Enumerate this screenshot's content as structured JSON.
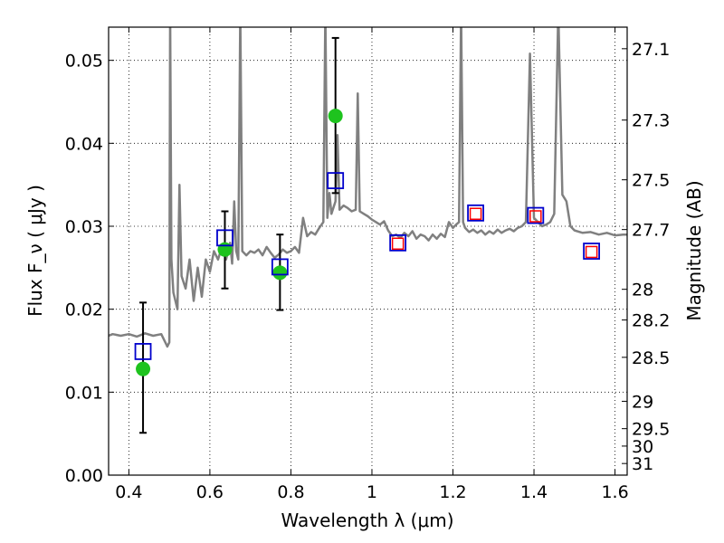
{
  "chart_data": {
    "type": "scatter",
    "xlabel": "Wavelength  λ (μm)",
    "ylabel": "Flux  F_ν  ( μJy )",
    "ylabel_right": "Magnitude (AB)",
    "xlim": [
      0.35,
      1.63
    ],
    "ylim": [
      0.0,
      0.054
    ],
    "grid": true,
    "x_ticks": [
      {
        "value": 0.4,
        "label": "0.4"
      },
      {
        "value": 0.6,
        "label": "0.6"
      },
      {
        "value": 0.8,
        "label": "0.8"
      },
      {
        "value": 1.0,
        "label": "1"
      },
      {
        "value": 1.2,
        "label": "1.2"
      },
      {
        "value": 1.4,
        "label": "1.4"
      },
      {
        "value": 1.6,
        "label": "1.6"
      }
    ],
    "y_ticks": [
      {
        "value": 0.0,
        "label": "0.00"
      },
      {
        "value": 0.01,
        "label": "0.01"
      },
      {
        "value": 0.02,
        "label": "0.02"
      },
      {
        "value": 0.03,
        "label": "0.03"
      },
      {
        "value": 0.04,
        "label": "0.04"
      },
      {
        "value": 0.05,
        "label": "0.05"
      }
    ],
    "magnitude_ticks": [
      {
        "label": "27.1",
        "flux": 0.0514
      },
      {
        "label": "27.3",
        "flux": 0.0428
      },
      {
        "label": "27.5",
        "flux": 0.0356
      },
      {
        "label": "27.7",
        "flux": 0.0296
      },
      {
        "label": "28",
        "flux": 0.0224
      },
      {
        "label": "28.2",
        "flux": 0.0187
      },
      {
        "label": "28.5",
        "flux": 0.0142
      },
      {
        "label": "29",
        "flux": 0.0089
      },
      {
        "label": "29.5",
        "flux": 0.0056
      },
      {
        "label": "30",
        "flux": 0.0035
      },
      {
        "label": "31",
        "flux": 0.0014
      }
    ],
    "series": [
      {
        "color": "#808080",
        "marker": "line",
        "points": [
          [
            0.35,
            0.0168
          ],
          [
            0.36,
            0.017
          ],
          [
            0.38,
            0.0168
          ],
          [
            0.4,
            0.017
          ],
          [
            0.42,
            0.0167
          ],
          [
            0.44,
            0.0171
          ],
          [
            0.46,
            0.0168
          ],
          [
            0.48,
            0.017
          ],
          [
            0.495,
            0.0155
          ],
          [
            0.5,
            0.016
          ],
          [
            0.502,
            0.056
          ],
          [
            0.505,
            0.026
          ],
          [
            0.51,
            0.022
          ],
          [
            0.52,
            0.02
          ],
          [
            0.525,
            0.035
          ],
          [
            0.53,
            0.024
          ],
          [
            0.54,
            0.0225
          ],
          [
            0.55,
            0.026
          ],
          [
            0.56,
            0.021
          ],
          [
            0.57,
            0.025
          ],
          [
            0.58,
            0.0215
          ],
          [
            0.59,
            0.026
          ],
          [
            0.6,
            0.0245
          ],
          [
            0.61,
            0.027
          ],
          [
            0.62,
            0.026
          ],
          [
            0.63,
            0.0275
          ],
          [
            0.64,
            0.026
          ],
          [
            0.65,
            0.028
          ],
          [
            0.655,
            0.0255
          ],
          [
            0.66,
            0.033
          ],
          [
            0.665,
            0.027
          ],
          [
            0.67,
            0.026
          ],
          [
            0.675,
            0.056
          ],
          [
            0.68,
            0.027
          ],
          [
            0.69,
            0.0265
          ],
          [
            0.7,
            0.027
          ],
          [
            0.71,
            0.0268
          ],
          [
            0.72,
            0.0272
          ],
          [
            0.73,
            0.0265
          ],
          [
            0.74,
            0.0275
          ],
          [
            0.75,
            0.0268
          ],
          [
            0.76,
            0.0262
          ],
          [
            0.77,
            0.0266
          ],
          [
            0.78,
            0.0272
          ],
          [
            0.79,
            0.0268
          ],
          [
            0.8,
            0.027
          ],
          [
            0.81,
            0.0275
          ],
          [
            0.82,
            0.0268
          ],
          [
            0.83,
            0.031
          ],
          [
            0.84,
            0.0288
          ],
          [
            0.85,
            0.0293
          ],
          [
            0.86,
            0.029
          ],
          [
            0.87,
            0.0298
          ],
          [
            0.88,
            0.0305
          ],
          [
            0.885,
            0.056
          ],
          [
            0.89,
            0.031
          ],
          [
            0.895,
            0.034
          ],
          [
            0.9,
            0.0315
          ],
          [
            0.91,
            0.033
          ],
          [
            0.915,
            0.041
          ],
          [
            0.92,
            0.032
          ],
          [
            0.93,
            0.0325
          ],
          [
            0.94,
            0.0322
          ],
          [
            0.95,
            0.0318
          ],
          [
            0.96,
            0.032
          ],
          [
            0.965,
            0.046
          ],
          [
            0.97,
            0.0318
          ],
          [
            0.98,
            0.0315
          ],
          [
            0.99,
            0.0312
          ],
          [
            1.0,
            0.0308
          ],
          [
            1.01,
            0.0305
          ],
          [
            1.02,
            0.0302
          ],
          [
            1.03,
            0.0306
          ],
          [
            1.04,
            0.0295
          ],
          [
            1.05,
            0.0288
          ],
          [
            1.06,
            0.029
          ],
          [
            1.07,
            0.0286
          ],
          [
            1.08,
            0.0292
          ],
          [
            1.09,
            0.0288
          ],
          [
            1.1,
            0.0294
          ],
          [
            1.11,
            0.0285
          ],
          [
            1.12,
            0.029
          ],
          [
            1.13,
            0.0288
          ],
          [
            1.14,
            0.0283
          ],
          [
            1.15,
            0.029
          ],
          [
            1.16,
            0.0285
          ],
          [
            1.17,
            0.0291
          ],
          [
            1.18,
            0.0287
          ],
          [
            1.19,
            0.0305
          ],
          [
            1.2,
            0.0298
          ],
          [
            1.21,
            0.0303
          ],
          [
            1.215,
            0.0305
          ],
          [
            1.22,
            0.056
          ],
          [
            1.225,
            0.0305
          ],
          [
            1.23,
            0.0298
          ],
          [
            1.24,
            0.0293
          ],
          [
            1.25,
            0.0296
          ],
          [
            1.26,
            0.0292
          ],
          [
            1.27,
            0.0295
          ],
          [
            1.28,
            0.029
          ],
          [
            1.29,
            0.0294
          ],
          [
            1.3,
            0.0291
          ],
          [
            1.31,
            0.0296
          ],
          [
            1.32,
            0.0292
          ],
          [
            1.33,
            0.0295
          ],
          [
            1.34,
            0.0297
          ],
          [
            1.35,
            0.0294
          ],
          [
            1.36,
            0.0298
          ],
          [
            1.37,
            0.03
          ],
          [
            1.38,
            0.0305
          ],
          [
            1.39,
            0.0508
          ],
          [
            1.4,
            0.031
          ],
          [
            1.41,
            0.0305
          ],
          [
            1.42,
            0.03
          ],
          [
            1.43,
            0.0302
          ],
          [
            1.44,
            0.0305
          ],
          [
            1.45,
            0.0315
          ],
          [
            1.46,
            0.056
          ],
          [
            1.47,
            0.0338
          ],
          [
            1.48,
            0.033
          ],
          [
            1.49,
            0.03
          ],
          [
            1.5,
            0.0295
          ],
          [
            1.52,
            0.0292
          ],
          [
            1.54,
            0.0293
          ],
          [
            1.56,
            0.029
          ],
          [
            1.58,
            0.0292
          ],
          [
            1.6,
            0.0289
          ],
          [
            1.62,
            0.029
          ],
          [
            1.63,
            0.029
          ]
        ]
      },
      {
        "color": "#1ec31e",
        "marker": "filled-circle",
        "points": [
          {
            "x": 0.435,
            "y": 0.0128,
            "yerr_low": 0.0051,
            "yerr_high": 0.0208
          },
          {
            "x": 0.637,
            "y": 0.0272,
            "yerr_low": 0.0225,
            "yerr_high": 0.0318
          },
          {
            "x": 0.773,
            "y": 0.0244,
            "yerr_low": 0.0199,
            "yerr_high": 0.029
          },
          {
            "x": 0.91,
            "y": 0.0433,
            "yerr_low": 0.034,
            "yerr_high": 0.0527
          }
        ]
      },
      {
        "color": "#0000cc",
        "marker": "open-square",
        "points": [
          {
            "x": 0.435,
            "y": 0.0149
          },
          {
            "x": 0.637,
            "y": 0.0286
          },
          {
            "x": 0.773,
            "y": 0.0251
          },
          {
            "x": 0.91,
            "y": 0.0355
          },
          {
            "x": 1.064,
            "y": 0.028
          },
          {
            "x": 1.256,
            "y": 0.0316
          },
          {
            "x": 1.404,
            "y": 0.0313
          },
          {
            "x": 1.542,
            "y": 0.027
          }
        ]
      },
      {
        "color": "#ff0000",
        "marker": "small-open-square",
        "points": [
          {
            "x": 1.064,
            "y": 0.0279
          },
          {
            "x": 1.256,
            "y": 0.0315
          },
          {
            "x": 1.404,
            "y": 0.0312
          },
          {
            "x": 1.542,
            "y": 0.0269
          }
        ]
      }
    ]
  }
}
